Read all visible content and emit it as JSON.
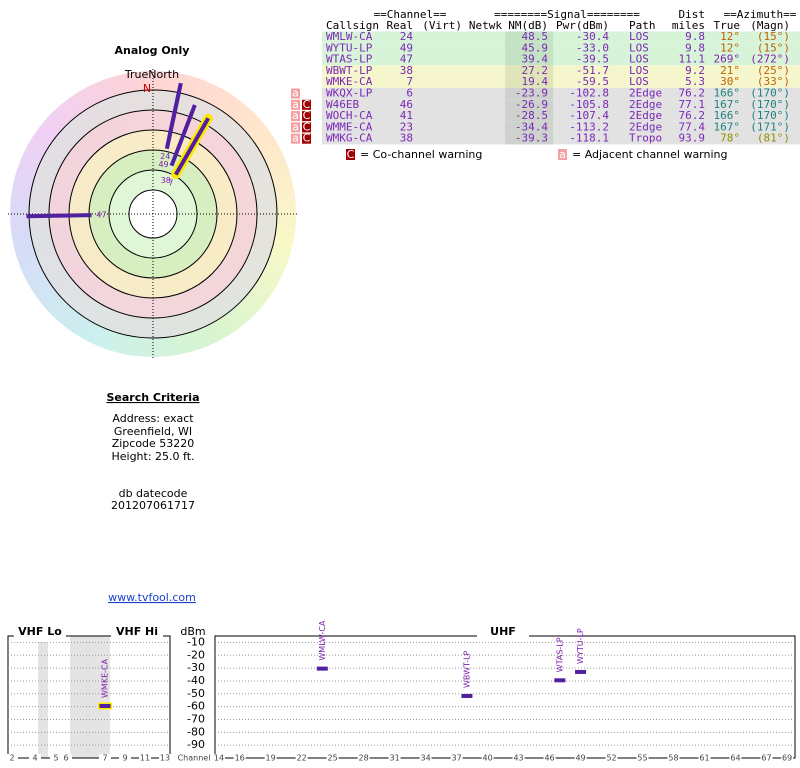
{
  "polar": {
    "title": "Analog Only",
    "north_label": "TrueNorth",
    "north_mark": "N"
  },
  "table": {
    "group_headers": [
      "==Channel==",
      "========Signal========",
      "==Azimuth=="
    ],
    "dist_header": "Dist",
    "columns": [
      "Callsign",
      "Real",
      "(Virt)",
      "Netwk",
      "NM(dB)",
      "Pwr(dBm)",
      "Path",
      "miles",
      "True",
      "(Magn)"
    ],
    "rows": [
      {
        "callsign": "WMLW-CA",
        "real": 24,
        "nm": 48.5,
        "pwr": -30.4,
        "path": "LOS",
        "dist": 9.8,
        "az": 12,
        "az_label": "12°",
        "magn": "(15°)",
        "row_color": "#d8f4d8",
        "az_color": "#c06000"
      },
      {
        "callsign": "WYTU-LP",
        "real": 49,
        "nm": 45.9,
        "pwr": -33,
        "pwr_label": "-33.0",
        "path": "LOS",
        "dist": 9.8,
        "az": 12,
        "az_label": "12°",
        "magn": "(15°)",
        "row_color": "#d8f4d8",
        "az_color": "#c06000"
      },
      {
        "callsign": "WTAS-LP",
        "real": 47,
        "nm": 39.4,
        "pwr": -39.5,
        "path": "LOS",
        "dist": 11.1,
        "az": 269,
        "az_label": "269°",
        "magn": "(272°)",
        "row_color": "#d8f4d8",
        "az_color": "#8020b0"
      },
      {
        "callsign": "WBWT-LP",
        "real": 38,
        "nm": 27.2,
        "pwr": -51.7,
        "path": "LOS",
        "dist": 9.2,
        "az": 21,
        "az_label": "21°",
        "magn": "(25°)",
        "row_color": "#f6f6cc",
        "az_color": "#c06000"
      },
      {
        "callsign": "WMKE-CA",
        "real": 7,
        "nm": 19.4,
        "pwr": -59.5,
        "path": "LOS",
        "dist": 5.3,
        "az": 30,
        "az_label": "30°",
        "magn": "(33°)",
        "row_color": "#f6f6cc",
        "az_color": "#c06000",
        "highlight": true
      },
      {
        "callsign": "WKQX-LP",
        "real": 6,
        "nm": -23.9,
        "pwr": -102.8,
        "path": "2Edge",
        "dist": 76.2,
        "az": 166,
        "az_label": "166°",
        "magn": "(170°)",
        "row_color": "#e2e2e2",
        "az_color": "#208080",
        "adjacent": true
      },
      {
        "callsign": "W46EB",
        "real": 46,
        "nm": -26.9,
        "pwr": -105.8,
        "path": "2Edge",
        "dist": 77.1,
        "az": 167,
        "az_label": "167°",
        "magn": "(170°)",
        "row_color": "#e2e2e2",
        "az_color": "#208080",
        "adjacent": true,
        "cochannel": true
      },
      {
        "callsign": "WOCH-CA",
        "real": 41,
        "nm": -28.5,
        "pwr": -107.4,
        "path": "2Edge",
        "dist": 76.2,
        "az": 166,
        "az_label": "166°",
        "magn": "(170°)",
        "row_color": "#e2e2e2",
        "az_color": "#208080",
        "adjacent": true,
        "cochannel": true
      },
      {
        "callsign": "WMME-CA",
        "real": 23,
        "nm": -34.4,
        "pwr": -113.2,
        "path": "2Edge",
        "dist": 77.4,
        "az": 167,
        "az_label": "167°",
        "magn": "(171°)",
        "row_color": "#e2e2e2",
        "az_color": "#208080",
        "adjacent": true,
        "cochannel": true
      },
      {
        "callsign": "WMKG-CA",
        "real": 38,
        "nm": -39.3,
        "pwr": -118.1,
        "path": "Tropo",
        "dist": 93.9,
        "az": 78,
        "az_label": "78°",
        "magn": "(81°)",
        "row_color": "#e2e2e2",
        "az_color": "#909000",
        "adjacent": true,
        "cochannel": true
      }
    ]
  },
  "legend": {
    "cochannel_icon": "C",
    "cochannel_text": "= Co-channel warning",
    "adjacent_icon": "a",
    "adjacent_text": "= Adjacent channel warning"
  },
  "criteria": {
    "title": "Search Criteria",
    "lines": [
      "Address: exact",
      "Greenfield, WI",
      "Zipcode 53220",
      "Height: 25.0 ft."
    ],
    "datecode_label": "db datecode",
    "datecode": "201207061717",
    "link": "www.tvfool.com"
  },
  "spectrum": {
    "bands": [
      "VHF Lo",
      "VHF Hi",
      "UHF"
    ],
    "unit": "dBm",
    "xlabel": "Channel",
    "ylim": [
      -5,
      -100
    ],
    "yticks": [
      -10,
      -20,
      -30,
      -40,
      -50,
      -60,
      -70,
      -80,
      -90
    ],
    "vhf_xticks": [
      2,
      4,
      5,
      6,
      7,
      9,
      11,
      13
    ],
    "uhf_xticks": [
      14,
      16,
      19,
      22,
      25,
      28,
      31,
      34,
      37,
      40,
      43,
      46,
      49,
      52,
      55,
      58,
      61,
      64,
      67,
      69
    ]
  }
}
